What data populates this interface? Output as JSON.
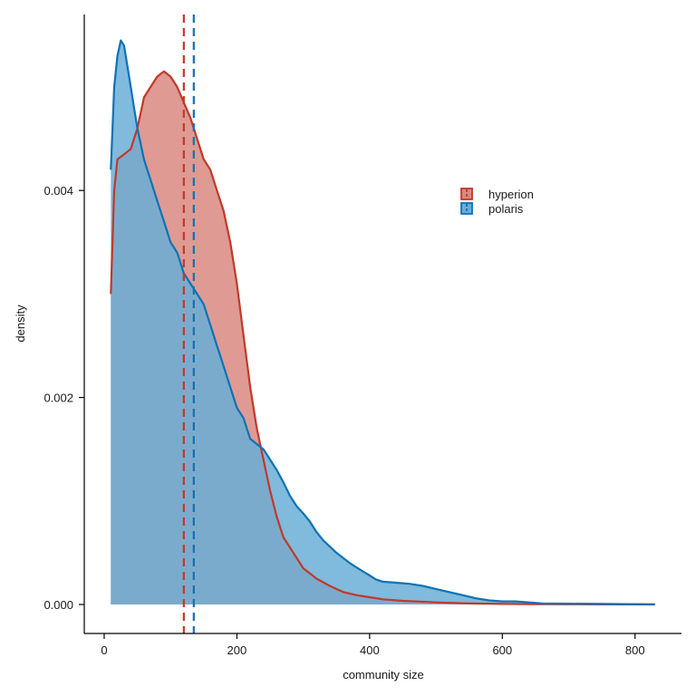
{
  "chart_data": {
    "type": "area",
    "xlabel": "community size",
    "ylabel": "density",
    "xlim": [
      -30,
      870
    ],
    "ylim": [
      -0.00028,
      0.0057
    ],
    "x_ticks": [
      0,
      200,
      400,
      600,
      800
    ],
    "x_tick_labels": [
      "0",
      "200",
      "400",
      "600",
      "800"
    ],
    "y_ticks": [
      0.0,
      0.002,
      0.004
    ],
    "y_tick_labels": [
      "0.000",
      "0.002",
      "0.004"
    ],
    "grid": false,
    "legend_position": "top-right inside",
    "series": [
      {
        "name": "hyperion",
        "color": "#c0392b",
        "fill": "#d98880",
        "mean": 120,
        "points": [
          [
            10,
            0.003
          ],
          [
            15,
            0.004
          ],
          [
            20,
            0.0043
          ],
          [
            30,
            0.00435
          ],
          [
            40,
            0.0044
          ],
          [
            50,
            0.0046
          ],
          [
            60,
            0.0049
          ],
          [
            70,
            0.005
          ],
          [
            80,
            0.0051
          ],
          [
            90,
            0.00515
          ],
          [
            100,
            0.0051
          ],
          [
            110,
            0.005
          ],
          [
            120,
            0.00485
          ],
          [
            130,
            0.0047
          ],
          [
            140,
            0.0045
          ],
          [
            150,
            0.0043
          ],
          [
            160,
            0.0042
          ],
          [
            170,
            0.004
          ],
          [
            180,
            0.0038
          ],
          [
            190,
            0.0035
          ],
          [
            200,
            0.0031
          ],
          [
            210,
            0.0026
          ],
          [
            220,
            0.0021
          ],
          [
            230,
            0.0017
          ],
          [
            240,
            0.0014
          ],
          [
            250,
            0.0011
          ],
          [
            260,
            0.00085
          ],
          [
            270,
            0.00065
          ],
          [
            280,
            0.00055
          ],
          [
            290,
            0.00045
          ],
          [
            300,
            0.00035
          ],
          [
            320,
            0.00025
          ],
          [
            340,
            0.00018
          ],
          [
            360,
            0.00012
          ],
          [
            380,
            9e-05
          ],
          [
            400,
            7e-05
          ],
          [
            420,
            5e-05
          ],
          [
            450,
            3.5e-05
          ],
          [
            500,
            2e-05
          ],
          [
            550,
            1e-05
          ],
          [
            600,
            5e-06
          ],
          [
            650,
            3e-06
          ],
          [
            700,
            2e-06
          ],
          [
            750,
            1e-06
          ],
          [
            830,
            0.0
          ]
        ]
      },
      {
        "name": "polaris",
        "color": "#0e72b5",
        "fill": "#6aaed6",
        "mean": 135,
        "points": [
          [
            10,
            0.0042
          ],
          [
            15,
            0.005
          ],
          [
            20,
            0.0053
          ],
          [
            25,
            0.00545
          ],
          [
            30,
            0.0054
          ],
          [
            35,
            0.0052
          ],
          [
            40,
            0.005
          ],
          [
            45,
            0.0048
          ],
          [
            50,
            0.0046
          ],
          [
            60,
            0.0043
          ],
          [
            70,
            0.0041
          ],
          [
            80,
            0.0039
          ],
          [
            90,
            0.0037
          ],
          [
            100,
            0.0035
          ],
          [
            110,
            0.0034
          ],
          [
            120,
            0.0032
          ],
          [
            130,
            0.0031
          ],
          [
            140,
            0.003
          ],
          [
            150,
            0.0029
          ],
          [
            160,
            0.0027
          ],
          [
            170,
            0.0025
          ],
          [
            180,
            0.0023
          ],
          [
            190,
            0.0021
          ],
          [
            200,
            0.0019
          ],
          [
            210,
            0.0018
          ],
          [
            220,
            0.0016
          ],
          [
            230,
            0.00155
          ],
          [
            240,
            0.0015
          ],
          [
            250,
            0.0014
          ],
          [
            260,
            0.0013
          ],
          [
            270,
            0.00118
          ],
          [
            280,
            0.00105
          ],
          [
            290,
            0.00095
          ],
          [
            300,
            0.00088
          ],
          [
            310,
            0.0008
          ],
          [
            320,
            0.0007
          ],
          [
            330,
            0.00062
          ],
          [
            340,
            0.00056
          ],
          [
            350,
            0.0005
          ],
          [
            360,
            0.00045
          ],
          [
            370,
            0.0004
          ],
          [
            380,
            0.00036
          ],
          [
            390,
            0.00032
          ],
          [
            400,
            0.00028
          ],
          [
            410,
            0.00024
          ],
          [
            420,
            0.00022
          ],
          [
            440,
            0.00021
          ],
          [
            460,
            0.0002
          ],
          [
            480,
            0.00018
          ],
          [
            500,
            0.00015
          ],
          [
            520,
            0.00012
          ],
          [
            540,
            9e-05
          ],
          [
            560,
            6e-05
          ],
          [
            580,
            4e-05
          ],
          [
            600,
            3e-05
          ],
          [
            620,
            3e-05
          ],
          [
            640,
            2e-05
          ],
          [
            660,
            1e-05
          ],
          [
            700,
            8e-06
          ],
          [
            750,
            5e-06
          ],
          [
            800,
            3e-06
          ],
          [
            830,
            2e-06
          ]
        ]
      }
    ],
    "legend": [
      "hyperion",
      "polaris"
    ]
  }
}
